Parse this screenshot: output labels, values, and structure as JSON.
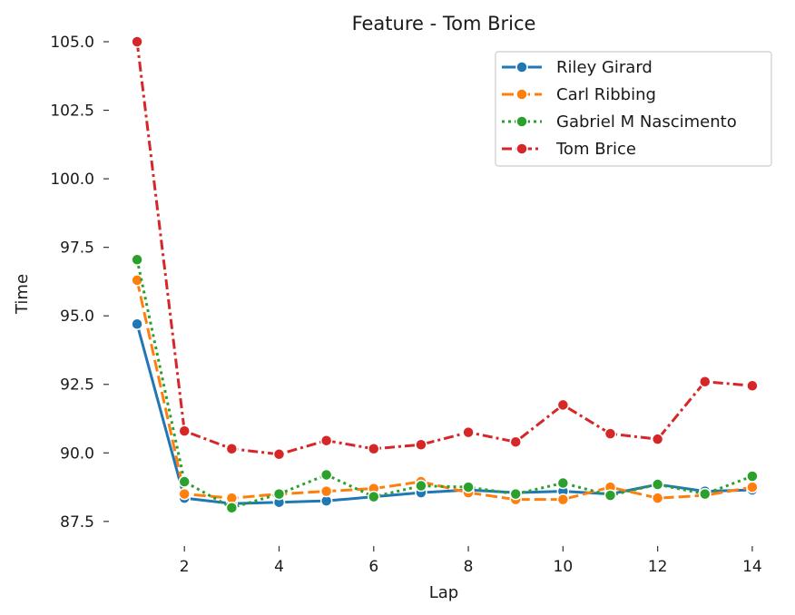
{
  "chart_data": {
    "type": "line",
    "title": "Feature - Tom Brice",
    "xlabel": "Lap",
    "ylabel": "Time",
    "xlim": [
      0.5,
      14.5
    ],
    "ylim": [
      86.8,
      105.0
    ],
    "x_ticks": [
      2,
      4,
      6,
      8,
      10,
      12,
      14
    ],
    "y_ticks": [
      87.5,
      90.0,
      92.5,
      95.0,
      97.5,
      100.0,
      102.5,
      105.0
    ],
    "y_tick_labels": [
      "87.5",
      "90.0",
      "92.5",
      "95.0",
      "97.5",
      "100.0",
      "102.5",
      "105.0"
    ],
    "grid": false,
    "legend_position": "top-right",
    "x": [
      1,
      2,
      3,
      4,
      5,
      6,
      7,
      8,
      9,
      10,
      11,
      12,
      13,
      14
    ],
    "series": [
      {
        "name": "Riley Girard",
        "color": "#1f77b4",
        "dash": "solid",
        "values": [
          94.7,
          88.35,
          88.15,
          88.2,
          88.25,
          88.4,
          88.55,
          88.65,
          88.55,
          88.6,
          88.5,
          88.85,
          88.6,
          88.65
        ]
      },
      {
        "name": "Carl Ribbing",
        "color": "#ff7f0e",
        "dash": "dashed",
        "values": [
          96.3,
          88.5,
          88.35,
          88.5,
          88.6,
          88.7,
          88.95,
          88.55,
          88.3,
          88.3,
          88.75,
          88.35,
          88.45,
          88.75
        ]
      },
      {
        "name": "Gabriel M Nascimento",
        "color": "#2ca02c",
        "dash": "dotted",
        "values": [
          97.05,
          88.95,
          88.0,
          88.5,
          89.2,
          88.4,
          88.8,
          88.75,
          88.5,
          88.9,
          88.45,
          88.85,
          88.5,
          89.15
        ]
      },
      {
        "name": "Tom Brice",
        "color": "#d62728",
        "dash": "dashdot",
        "values": [
          105.0,
          90.8,
          90.15,
          89.95,
          90.45,
          90.15,
          90.3,
          90.75,
          90.4,
          91.75,
          90.7,
          90.5,
          92.6,
          92.45
        ]
      }
    ]
  }
}
